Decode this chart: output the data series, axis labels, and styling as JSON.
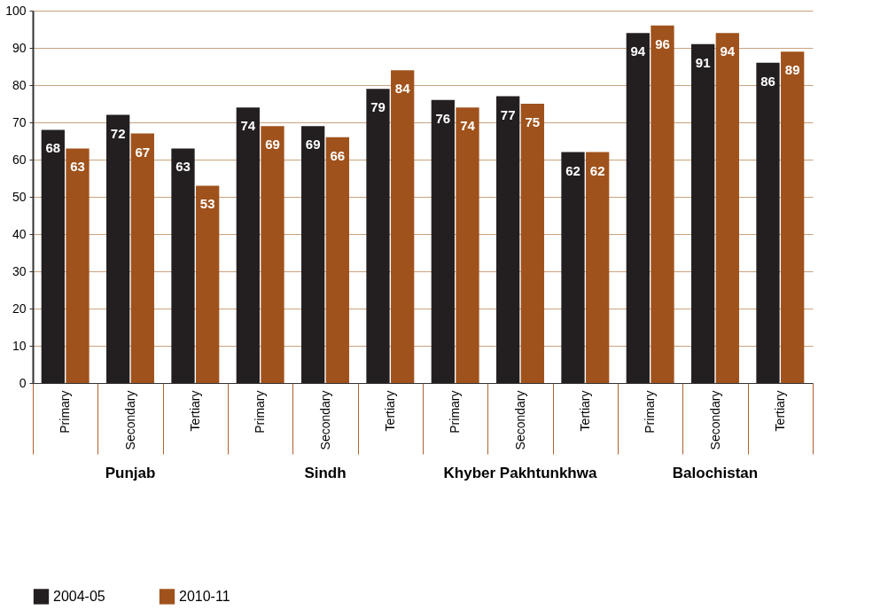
{
  "chart_data": {
    "type": "bar",
    "categories": [
      "Primary",
      "Secondary",
      "Tertiary",
      "Primary",
      "Secondary",
      "Tertiary",
      "Primary",
      "Secondary",
      "Tertiary",
      "Primary",
      "Secondary",
      "Tertiary"
    ],
    "series": [
      {
        "name": "2004-05",
        "color": "#231f20",
        "values": [
          68,
          72,
          63,
          74,
          69,
          79,
          76,
          77,
          62,
          94,
          91,
          86
        ]
      },
      {
        "name": "2010-11",
        "color": "#a0521c",
        "values": [
          63,
          67,
          53,
          69,
          66,
          84,
          74,
          75,
          62,
          96,
          94,
          89
        ]
      }
    ],
    "ylim": [
      0,
      100
    ],
    "yticks": [
      0,
      10,
      20,
      30,
      40,
      50,
      60,
      70,
      80,
      90,
      100
    ],
    "grid": "y",
    "legend": "bottom",
    "data_labels": true,
    "annotations": [
      "Punjab",
      "Sindh",
      "Khyber Pakhtunkhwa",
      "Balochistan"
    ]
  }
}
